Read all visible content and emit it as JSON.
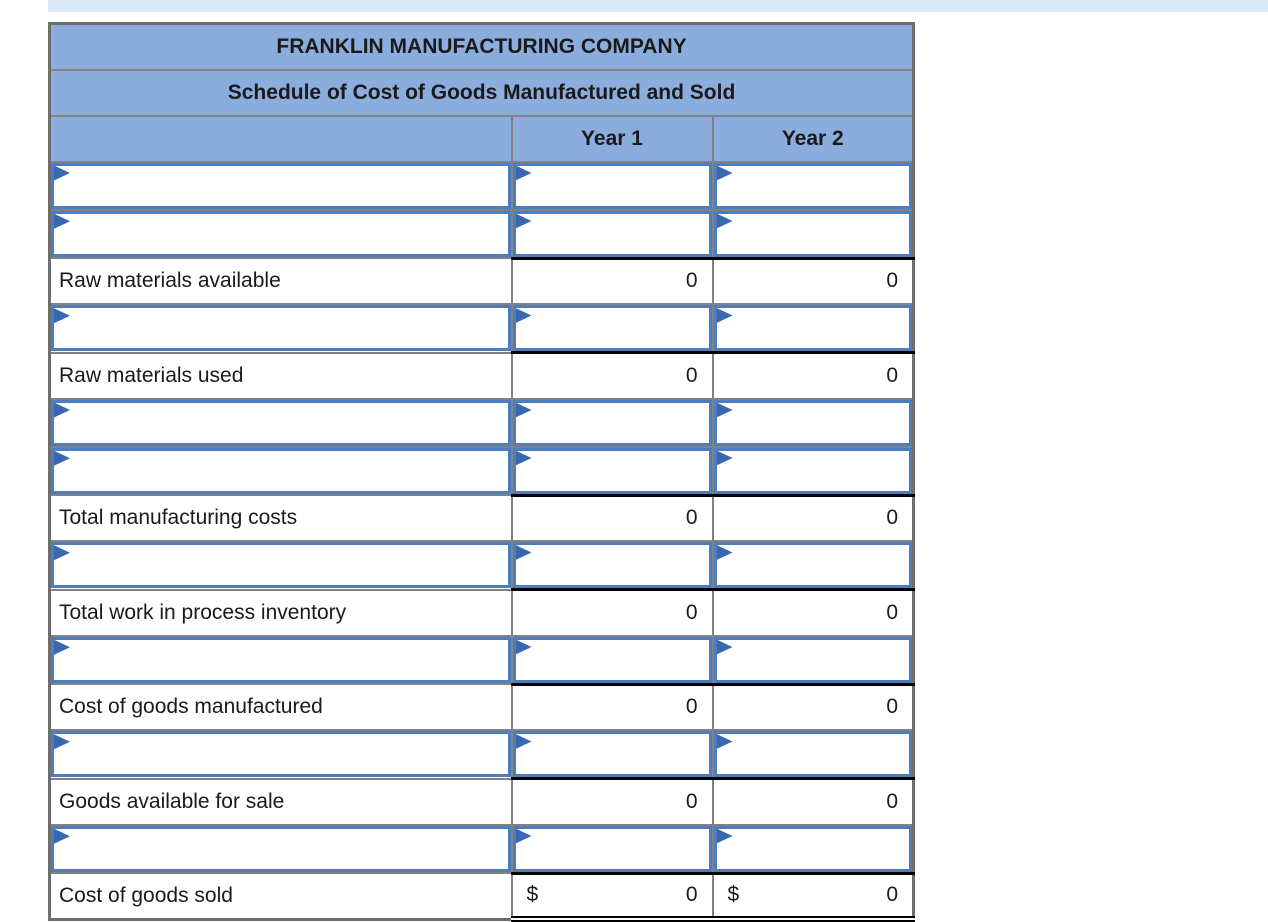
{
  "colors": {
    "header_bg": "#8badde",
    "input_border": "#4e7dbd",
    "flag": "#3a67b1",
    "strip": "#dce9f7",
    "grid": "#828282",
    "outer": "#6e6e6e"
  },
  "table": {
    "title": "FRANKLIN MANUFACTURING COMPANY",
    "subtitle": "Schedule of Cost of Goods Manufactured and Sold",
    "columns": [
      "",
      "Year 1",
      "Year 2"
    ],
    "rows": [
      {
        "type": "input"
      },
      {
        "type": "input"
      },
      {
        "type": "result",
        "label": "Raw materials available",
        "year1": "0",
        "year2": "0"
      },
      {
        "type": "input"
      },
      {
        "type": "result",
        "label": "Raw materials used",
        "year1": "0",
        "year2": "0"
      },
      {
        "type": "input"
      },
      {
        "type": "input"
      },
      {
        "type": "result",
        "label": "Total manufacturing costs",
        "year1": "0",
        "year2": "0"
      },
      {
        "type": "input"
      },
      {
        "type": "result",
        "label": "Total work in process inventory",
        "year1": "0",
        "year2": "0"
      },
      {
        "type": "input"
      },
      {
        "type": "result",
        "label": "Cost of goods manufactured",
        "year1": "0",
        "year2": "0"
      },
      {
        "type": "input"
      },
      {
        "type": "result",
        "label": "Goods available for sale",
        "year1": "0",
        "year2": "0"
      },
      {
        "type": "input"
      },
      {
        "type": "total",
        "label": "Cost of goods sold",
        "currency": "$",
        "year1": "0",
        "year2": "0"
      }
    ]
  }
}
